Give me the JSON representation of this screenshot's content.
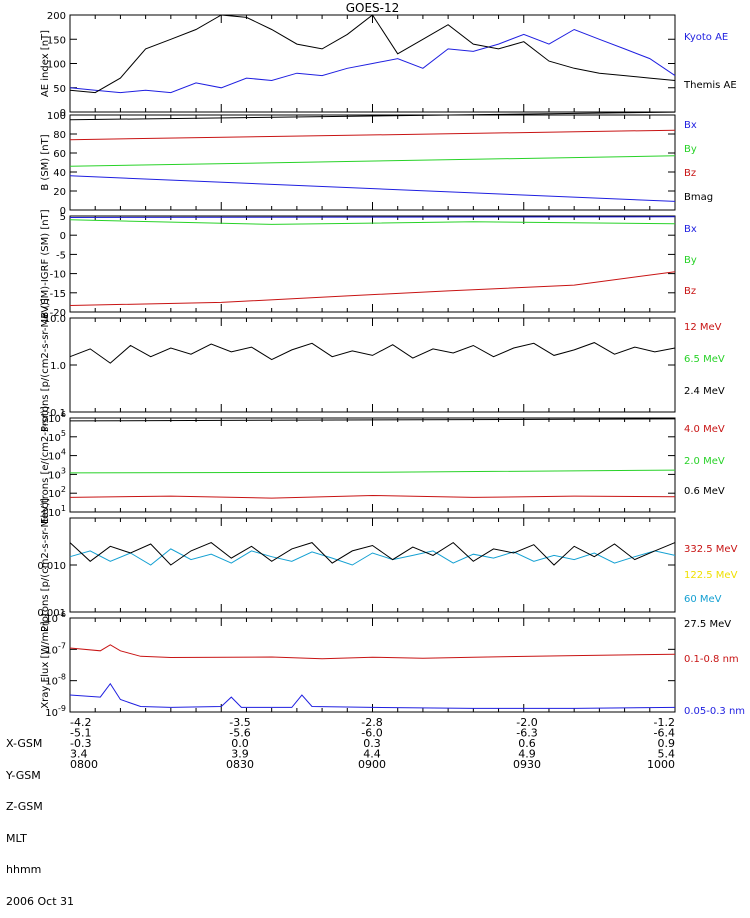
{
  "title": "GOES-12",
  "date": "2006 Oct 31",
  "colors": {
    "black": "#000000",
    "blue": "#1f1fe0",
    "red": "#c81414",
    "green": "#28d228",
    "cyan": "#14a0d2",
    "yellow": "#f0e000"
  },
  "footer": {
    "row_labels": [
      "X-GSM",
      "Y-GSM",
      "Z-GSM",
      "MLT",
      "hhmm"
    ],
    "columns": [
      {
        "vals": [
          "-4.2",
          "-5.1",
          "-0.3",
          "3.4",
          "0800"
        ]
      },
      {
        "vals": [
          "-3.5",
          "-5.6",
          "0.0",
          "3.9",
          "0830"
        ]
      },
      {
        "vals": [
          "-2.8",
          "-6.0",
          "0.3",
          "4.4",
          "0900"
        ]
      },
      {
        "vals": [
          "-2.0",
          "-6.3",
          "0.6",
          "4.9",
          "0930"
        ]
      },
      {
        "vals": [
          "-1.2",
          "-6.4",
          "0.9",
          "5.4",
          "1000"
        ]
      }
    ]
  },
  "chart_data": [
    {
      "type": "line",
      "ylabel": "AE index [nT]",
      "ylim": [
        0,
        200
      ],
      "scale": "linear",
      "yticks": [
        "0",
        "50",
        "100",
        "150",
        "200"
      ],
      "series": [
        {
          "name": "Kyoto AE",
          "color": "blue",
          "x": [
            0,
            5,
            10,
            15,
            20,
            25,
            30,
            35,
            40,
            45,
            50,
            55,
            60,
            65,
            70,
            75,
            80,
            85,
            90,
            95,
            100,
            105,
            110,
            115,
            120
          ],
          "y": [
            50,
            45,
            40,
            45,
            40,
            60,
            50,
            70,
            65,
            80,
            75,
            90,
            100,
            110,
            90,
            130,
            125,
            140,
            160,
            140,
            170,
            150,
            130,
            110,
            75
          ]
        },
        {
          "name": "Themis AE",
          "color": "black",
          "x": [
            0,
            5,
            10,
            15,
            20,
            25,
            30,
            35,
            40,
            45,
            50,
            55,
            60,
            65,
            70,
            75,
            80,
            85,
            90,
            95,
            100,
            105,
            110,
            115,
            120
          ],
          "y": [
            45,
            40,
            70,
            130,
            150,
            170,
            200,
            195,
            170,
            140,
            130,
            160,
            200,
            120,
            150,
            180,
            140,
            130,
            145,
            105,
            90,
            80,
            75,
            70,
            65
          ]
        }
      ]
    },
    {
      "type": "line",
      "ylabel": "B (SM) [nT]",
      "ylim": [
        0,
        100
      ],
      "scale": "linear",
      "yticks": [
        "0",
        "20",
        "40",
        "60",
        "80",
        "100"
      ],
      "series": [
        {
          "name": "Bx",
          "color": "blue",
          "x": [
            0,
            120
          ],
          "y": [
            36,
            9
          ]
        },
        {
          "name": "By",
          "color": "green",
          "x": [
            0,
            120
          ],
          "y": [
            46,
            57
          ]
        },
        {
          "name": "Bz",
          "color": "red",
          "x": [
            0,
            120
          ],
          "y": [
            74,
            84
          ]
        },
        {
          "name": "Bmag",
          "color": "black",
          "x": [
            0,
            120
          ],
          "y": [
            95,
            103
          ]
        }
      ]
    },
    {
      "type": "line",
      "ylabel": "B (SM)-IGRF (SM) [nT]",
      "ylim": [
        -20,
        5
      ],
      "scale": "linear",
      "yticks": [
        "-20",
        "-15",
        "-10",
        "-5",
        "0",
        "5"
      ],
      "series": [
        {
          "name": "Bx",
          "color": "blue",
          "x": [
            0,
            120
          ],
          "y": [
            4.6,
            4.8
          ]
        },
        {
          "name": "By",
          "color": "green",
          "x": [
            0,
            40,
            80,
            120
          ],
          "y": [
            4.0,
            2.8,
            3.5,
            3.0
          ]
        },
        {
          "name": "Bz",
          "color": "red",
          "x": [
            0,
            30,
            55,
            75,
            100,
            120
          ],
          "y": [
            -18.3,
            -17.5,
            -15.8,
            -14.5,
            -13,
            -9.5
          ]
        }
      ]
    },
    {
      "type": "line",
      "ylabel": "Protons [p/(cm2-s-sr-MeV)]",
      "ylim": [
        0.1,
        10
      ],
      "scale": "log",
      "yticks": [
        "0.1",
        "1.0",
        "10.0"
      ],
      "series": [
        {
          "name": "12 MeV",
          "color": "red",
          "x": [],
          "y": []
        },
        {
          "name": "6.5 MeV",
          "color": "green",
          "x": [],
          "y": []
        },
        {
          "name": "2.4 MeV",
          "color": "black",
          "x": [
            0,
            4,
            8,
            12,
            16,
            20,
            24,
            28,
            32,
            36,
            40,
            44,
            48,
            52,
            56,
            60,
            64,
            68,
            72,
            76,
            80,
            84,
            88,
            92,
            96,
            100,
            104,
            108,
            112,
            116,
            120
          ],
          "y": [
            1.5,
            2.2,
            1.1,
            2.6,
            1.5,
            2.3,
            1.7,
            2.8,
            1.9,
            2.4,
            1.3,
            2.1,
            2.9,
            1.5,
            2.0,
            1.6,
            2.7,
            1.4,
            2.2,
            1.8,
            2.6,
            1.5,
            2.3,
            2.9,
            1.6,
            2.1,
            3.0,
            1.7,
            2.4,
            1.9,
            2.3
          ]
        }
      ]
    },
    {
      "type": "line",
      "ylabel": "Electrons [e/(cm2-s-sr)]",
      "ylim": [
        10,
        1000000
      ],
      "scale": "log",
      "yticks": [
        "10^1",
        "10^2",
        "10^3",
        "10^4",
        "10^5",
        "10^6"
      ],
      "series": [
        {
          "name": "4.0 MeV",
          "color": "red",
          "x": [
            0,
            20,
            40,
            60,
            80,
            100,
            120
          ],
          "y": [
            60,
            70,
            55,
            75,
            60,
            70,
            65
          ]
        },
        {
          "name": "2.0 MeV",
          "color": "green",
          "x": [
            0,
            60,
            120
          ],
          "y": [
            1200,
            1300,
            1700
          ]
        },
        {
          "name": "0.6 MeV",
          "color": "black",
          "x": [
            0,
            120
          ],
          "y": [
            700000,
            900000
          ]
        }
      ]
    },
    {
      "type": "line",
      "ylabel": "Protons [p/(cm2-s-sr-MeV)]",
      "ylim": [
        0.001,
        0.1
      ],
      "scale": "log",
      "yticks": [
        "0.001",
        "0.010"
      ],
      "series": [
        {
          "name": "332.5 MeV",
          "color": "red",
          "x": [],
          "y": []
        },
        {
          "name": "122.5 MeV",
          "color": "yellow",
          "x": [],
          "y": []
        },
        {
          "name": "60 MeV",
          "color": "cyan",
          "x": [
            0,
            4,
            8,
            12,
            16,
            20,
            24,
            28,
            32,
            36,
            40,
            44,
            48,
            52,
            56,
            60,
            64,
            68,
            72,
            76,
            80,
            84,
            88,
            92,
            96,
            100,
            104,
            108,
            112,
            116,
            120
          ],
          "y": [
            0.015,
            0.02,
            0.012,
            0.018,
            0.01,
            0.022,
            0.013,
            0.017,
            0.011,
            0.02,
            0.015,
            0.012,
            0.019,
            0.014,
            0.01,
            0.018,
            0.013,
            0.016,
            0.02,
            0.011,
            0.017,
            0.014,
            0.019,
            0.012,
            0.016,
            0.013,
            0.018,
            0.011,
            0.015,
            0.02,
            0.016
          ]
        },
        {
          "name": "27.5 MeV",
          "color": "black",
          "x": [
            0,
            4,
            8,
            12,
            16,
            20,
            24,
            28,
            32,
            36,
            40,
            44,
            48,
            52,
            56,
            60,
            64,
            68,
            72,
            76,
            80,
            84,
            88,
            92,
            96,
            100,
            104,
            108,
            112,
            116,
            120
          ],
          "y": [
            0.03,
            0.012,
            0.025,
            0.018,
            0.028,
            0.01,
            0.02,
            0.03,
            0.014,
            0.025,
            0.012,
            0.022,
            0.03,
            0.011,
            0.02,
            0.026,
            0.013,
            0.024,
            0.016,
            0.03,
            0.012,
            0.022,
            0.018,
            0.027,
            0.01,
            0.025,
            0.015,
            0.028,
            0.013,
            0.02,
            0.03
          ]
        }
      ]
    },
    {
      "type": "line",
      "ylabel": "Xray Flux [W/m2]",
      "ylim": [
        1e-09,
        1e-06
      ],
      "scale": "log",
      "yticks": [
        "10^-9",
        "10^-8",
        "10^-7",
        "10^-6"
      ],
      "series": [
        {
          "name": "0.1-0.8 nm",
          "color": "red",
          "x": [
            0,
            6,
            8,
            10,
            14,
            20,
            40,
            50,
            60,
            70,
            80,
            100,
            120
          ],
          "y": [
            1.1e-07,
            9e-08,
            1.4e-07,
            9e-08,
            6e-08,
            5.5e-08,
            5.7e-08,
            5e-08,
            5.6e-08,
            5.2e-08,
            5.6e-08,
            6.3e-08,
            7e-08
          ]
        },
        {
          "name": "0.05-0.3 nm",
          "color": "blue",
          "x": [
            0,
            6,
            8,
            10,
            14,
            20,
            30,
            32,
            34,
            44,
            46,
            48,
            60,
            80,
            100,
            120
          ],
          "y": [
            3.5e-09,
            3e-09,
            8e-09,
            2.5e-09,
            1.5e-09,
            1.4e-09,
            1.5e-09,
            3e-09,
            1.4e-09,
            1.4e-09,
            3.5e-09,
            1.5e-09,
            1.4e-09,
            1.3e-09,
            1.3e-09,
            1.4e-09
          ]
        }
      ]
    }
  ]
}
